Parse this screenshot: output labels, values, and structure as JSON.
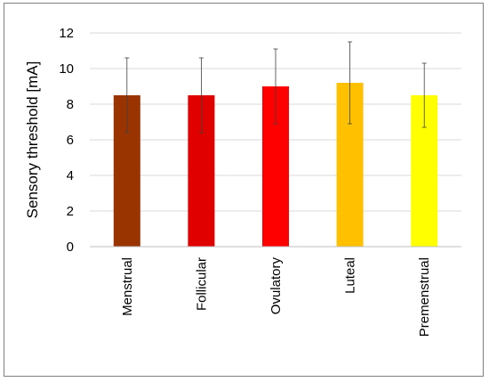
{
  "chart_data": {
    "type": "bar",
    "title": "",
    "xlabel": "",
    "ylabel": "Sensory threshold [mA]",
    "ylim": [
      0,
      12
    ],
    "yticks": [
      0,
      2,
      4,
      6,
      8,
      10,
      12
    ],
    "grid": true,
    "legend": "none",
    "categories": [
      "Menstrual",
      "Follicular",
      "Ovulatory",
      "Luteal",
      "Premenstrual"
    ],
    "values": [
      8.5,
      8.5,
      9.0,
      9.2,
      8.5
    ],
    "errors": [
      2.1,
      2.1,
      2.1,
      2.3,
      1.8
    ],
    "colors": [
      "#993300",
      "#e00000",
      "#ff0000",
      "#ffc000",
      "#ffff00"
    ]
  }
}
